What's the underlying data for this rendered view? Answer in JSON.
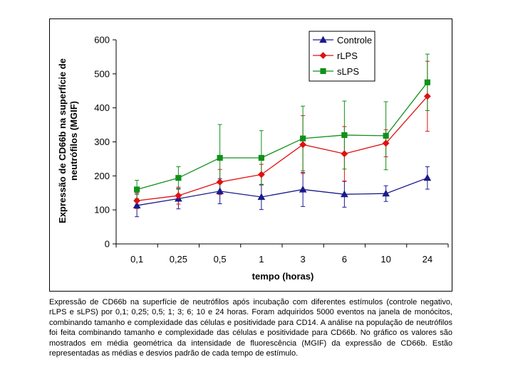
{
  "chart_data": {
    "type": "line",
    "categories": [
      "0,1",
      "0,25",
      "0,5",
      "1",
      "3",
      "6",
      "10",
      "24"
    ],
    "xlabel": "tempo (horas)",
    "ylabel": "Expressão de CD66b na superfície de neutrófilos (MGIF)",
    "ylim": [
      0,
      600
    ],
    "yticks": [
      "0",
      "100",
      "200",
      "300",
      "400",
      "500",
      "600"
    ],
    "grid": false,
    "legend_position": "top-right",
    "series": [
      {
        "name": "Controle",
        "color": "#1a1a8c",
        "marker": "triangle",
        "values": [
          113,
          133,
          155,
          138,
          160,
          146,
          148,
          194
        ],
        "errors": [
          33,
          30,
          37,
          37,
          50,
          38,
          23,
          33
        ]
      },
      {
        "name": "rLPS",
        "color": "#e01010",
        "marker": "diamond",
        "values": [
          127,
          142,
          182,
          204,
          292,
          265,
          296,
          434
        ],
        "errors": [
          23,
          25,
          37,
          30,
          85,
          80,
          40,
          103
        ]
      },
      {
        "name": "sLPS",
        "color": "#10901a",
        "marker": "square",
        "values": [
          160,
          194,
          253,
          253,
          310,
          320,
          318,
          475
        ],
        "errors": [
          27,
          33,
          98,
          80,
          95,
          100,
          100,
          83
        ]
      }
    ]
  },
  "caption": "Expressão de CD66b na superfície de neutrófilos após incubação com diferentes estímulos (controle negativo, rLPS e sLPS) por 0,1; 0,25; 0,5; 1; 3; 6; 10 e 24 horas. Foram adquiridos 5000 eventos na janela de monócitos, combinando tamanho e complexidade das células e positividade para CD14. A análise na população de neutrófilos foi feita combinando tamanho e complexidade das células e positividade para CD66b. No gráfico os valores são mostrados em média geométrica da intensidade de fluorescência (MGIF) da expressão de CD66b. Estão representadas as médias e desvios padrão de cada tempo de estímulo."
}
